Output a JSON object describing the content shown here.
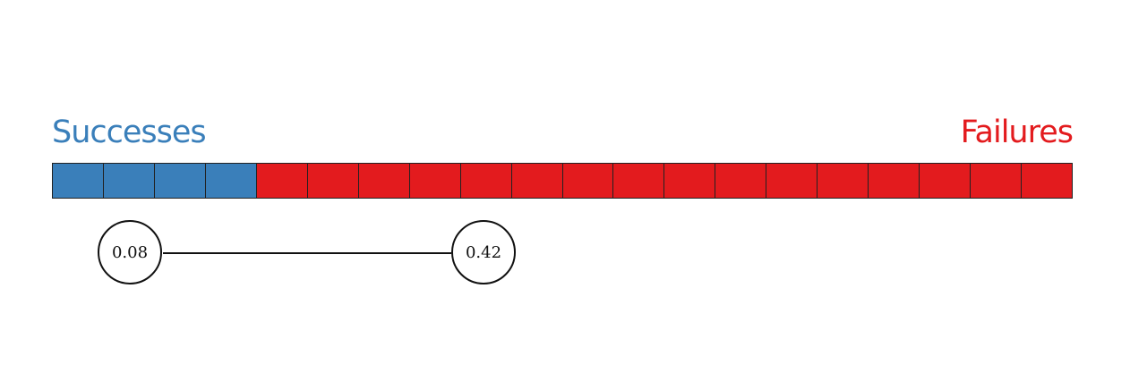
{
  "labels": {
    "successes": "Successes",
    "failures": "Failures"
  },
  "colors": {
    "success": "#3a7fba",
    "failure": "#e31b1e"
  },
  "bar": {
    "total_cells": 20,
    "success_cells": 4,
    "failure_cells": 16
  },
  "nodes": {
    "left": "0.08",
    "right": "0.42"
  }
}
